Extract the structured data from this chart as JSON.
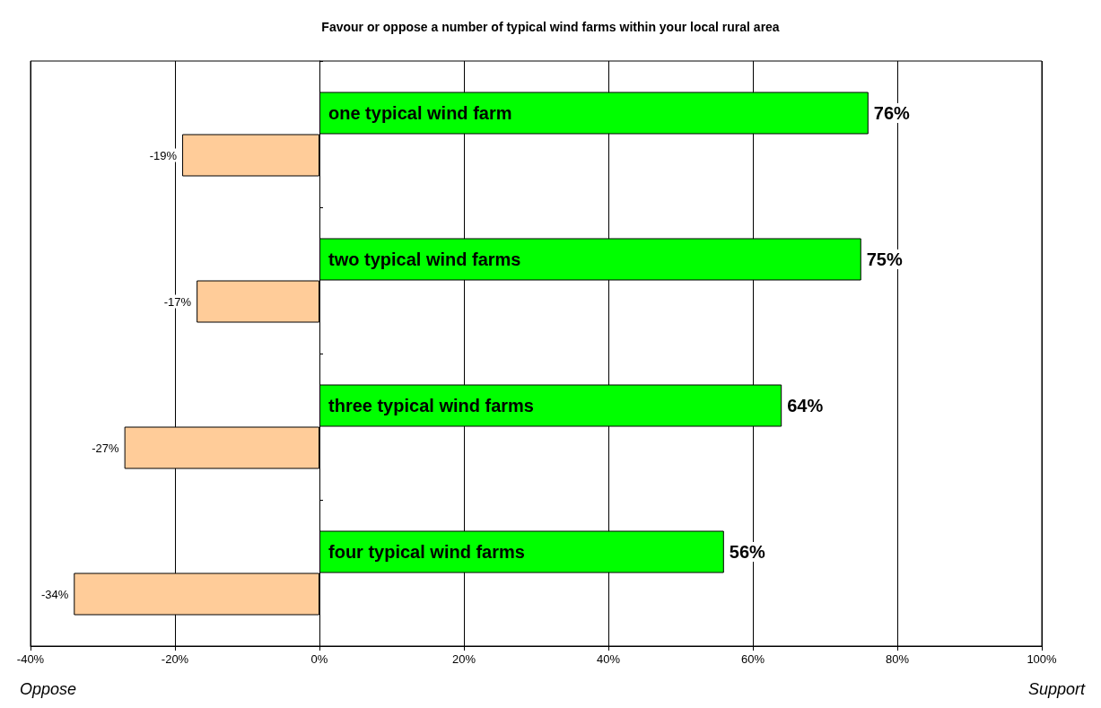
{
  "chart_data": {
    "type": "bar",
    "orientation": "horizontal",
    "title": "Favour or oppose a number of typical wind farms within your local rural area",
    "categories": [
      "one typical wind farm",
      "two typical wind farms",
      "three typical wind farms",
      "four typical wind farms"
    ],
    "series": [
      {
        "color": "#00ff00",
        "values": [
          76,
          75,
          64,
          56
        ],
        "value_labels": [
          "76%",
          "75%",
          "64%",
          "56%"
        ]
      },
      {
        "color": "#ffcc99",
        "values": [
          -19,
          -17,
          -27,
          -34
        ],
        "value_labels": [
          "-19%",
          "-17%",
          "-27%",
          "-34%"
        ]
      }
    ],
    "xlim": [
      -40,
      100
    ],
    "xticks": [
      {
        "value": -40,
        "label": "-40%"
      },
      {
        "value": -20,
        "label": "-20%"
      },
      {
        "value": 0,
        "label": "0%"
      },
      {
        "value": 20,
        "label": "20%"
      },
      {
        "value": 40,
        "label": "40%"
      },
      {
        "value": 60,
        "label": "60%"
      },
      {
        "value": 80,
        "label": "80%"
      },
      {
        "value": 100,
        "label": "100%"
      }
    ],
    "grid": "x",
    "annotations": [
      "Oppose",
      "Support"
    ]
  }
}
